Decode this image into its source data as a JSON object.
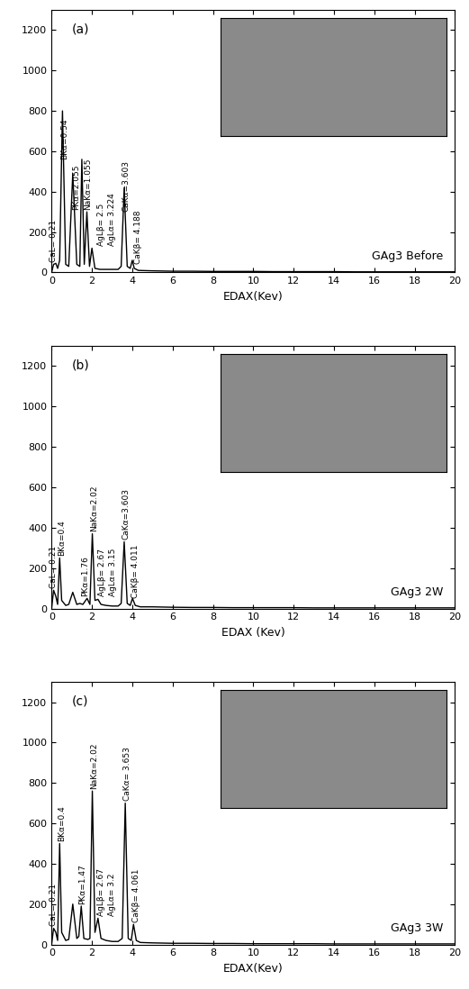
{
  "chart_data": [
    {
      "type": "line",
      "title": "GAg3 Before",
      "subtitle": "(a)",
      "x_label": "EDAX(Kev)",
      "color": "#000000",
      "grid": false,
      "xlim": [
        0,
        20
      ],
      "xticks": [
        0,
        2,
        4,
        6,
        8,
        10,
        12,
        14,
        16,
        18,
        20
      ],
      "ylim": [
        0,
        1300
      ],
      "yticks": [
        0,
        200,
        400,
        600,
        800,
        1000,
        1200
      ],
      "x": [
        0,
        0.1,
        0.21,
        0.3,
        0.4,
        0.54,
        0.7,
        0.85,
        1.05,
        1.25,
        1.4,
        1.5,
        1.62,
        1.75,
        1.88,
        2.0,
        2.15,
        2.4,
        2.7,
        3.0,
        3.3,
        3.45,
        3.6,
        3.75,
        3.9,
        4.0,
        4.1,
        4.3,
        5,
        6,
        7,
        8,
        9,
        10,
        11,
        12,
        13,
        14,
        15,
        16,
        17,
        18,
        19,
        20
      ],
      "values": [
        0,
        40,
        45,
        20,
        60,
        800,
        40,
        30,
        490,
        40,
        30,
        560,
        40,
        300,
        30,
        120,
        20,
        15,
        15,
        15,
        15,
        30,
        420,
        30,
        20,
        60,
        20,
        10,
        8,
        6,
        6,
        5,
        5,
        5,
        4,
        4,
        4,
        4,
        3,
        3,
        3,
        3,
        3,
        3
      ],
      "annotations": [
        {
          "text": "CaL= 0.21",
          "x": 0.1,
          "y": 50
        },
        {
          "text": "BKα=0.54",
          "x": 0.62,
          "y": 560
        },
        {
          "text": "PKα=2.055",
          "x": 1.2,
          "y": 310
        },
        {
          "text": "NaKα=1.055",
          "x": 1.8,
          "y": 310
        },
        {
          "text": "AgLβ= 2.5",
          "x": 2.45,
          "y": 130
        },
        {
          "text": "AgLα= 3.224",
          "x": 3.0,
          "y": 130
        },
        {
          "text": "CaKα=3.603",
          "x": 3.7,
          "y": 300
        },
        {
          "text": "CaKβ= 4.188",
          "x": 4.3,
          "y": 40
        }
      ]
    },
    {
      "type": "line",
      "title": "GAg3 2W",
      "subtitle": "(b)",
      "x_label": "EDAX (Kev)",
      "color": "#000000",
      "grid": false,
      "xlim": [
        0,
        20
      ],
      "xticks": [
        0,
        2,
        4,
        6,
        8,
        10,
        12,
        14,
        16,
        18,
        20
      ],
      "ylim": [
        0,
        1300
      ],
      "yticks": [
        0,
        200,
        400,
        600,
        800,
        1000,
        1200
      ],
      "x": [
        0,
        0.1,
        0.21,
        0.3,
        0.4,
        0.5,
        0.7,
        0.85,
        1.05,
        1.25,
        1.4,
        1.55,
        1.76,
        1.9,
        2.02,
        2.15,
        2.3,
        2.45,
        2.7,
        3.0,
        3.3,
        3.45,
        3.6,
        3.75,
        3.9,
        4.01,
        4.15,
        4.4,
        5,
        6,
        7,
        8,
        9,
        10,
        11,
        12,
        13,
        14,
        15,
        16,
        17,
        18,
        19,
        20
      ],
      "values": [
        0,
        90,
        60,
        20,
        250,
        40,
        15,
        20,
        80,
        20,
        25,
        20,
        50,
        20,
        370,
        40,
        45,
        20,
        15,
        12,
        12,
        25,
        330,
        25,
        15,
        50,
        15,
        8,
        8,
        6,
        5,
        5,
        4,
        4,
        4,
        4,
        3,
        3,
        3,
        3,
        3,
        3,
        3,
        3
      ],
      "annotations": [
        {
          "text": "CaL= 0.21",
          "x": 0.1,
          "y": 100
        },
        {
          "text": "BKα=0.4",
          "x": 0.5,
          "y": 260
        },
        {
          "text": "PKα=1.76",
          "x": 1.65,
          "y": 60
        },
        {
          "text": "NaKα=2.02",
          "x": 2.1,
          "y": 380
        },
        {
          "text": "AgLβ= 2.67",
          "x": 2.5,
          "y": 60
        },
        {
          "text": "AgLα= 3.15",
          "x": 3.05,
          "y": 60
        },
        {
          "text": "CaKα=3.603",
          "x": 3.7,
          "y": 340
        },
        {
          "text": "CaKβ= 4.011",
          "x": 4.15,
          "y": 50
        }
      ]
    },
    {
      "type": "line",
      "title": "GAg3 3W",
      "subtitle": "(c)",
      "x_label": "EDAX(Kev)",
      "color": "#000000",
      "grid": false,
      "xlim": [
        0,
        20
      ],
      "xticks": [
        0,
        2,
        4,
        6,
        8,
        10,
        12,
        14,
        16,
        18,
        20
      ],
      "ylim": [
        0,
        1300
      ],
      "yticks": [
        0,
        200,
        400,
        600,
        800,
        1000,
        1200
      ],
      "x": [
        0,
        0.1,
        0.21,
        0.3,
        0.4,
        0.5,
        0.7,
        0.85,
        1.05,
        1.25,
        1.35,
        1.47,
        1.6,
        1.8,
        1.9,
        2.02,
        2.15,
        2.3,
        2.45,
        2.7,
        3.0,
        3.3,
        3.5,
        3.653,
        3.8,
        3.95,
        4.061,
        4.2,
        4.4,
        5,
        6,
        7,
        8,
        9,
        10,
        11,
        12,
        13,
        14,
        15,
        16,
        17,
        18,
        19,
        20
      ],
      "values": [
        0,
        80,
        60,
        20,
        500,
        60,
        20,
        25,
        200,
        30,
        40,
        190,
        30,
        25,
        30,
        760,
        60,
        130,
        30,
        20,
        15,
        15,
        30,
        700,
        30,
        20,
        100,
        20,
        10,
        8,
        6,
        6,
        5,
        5,
        4,
        4,
        4,
        4,
        3,
        3,
        3,
        3,
        3,
        3,
        3
      ],
      "annotations": [
        {
          "text": "CaL= 0.21",
          "x": 0.1,
          "y": 90
        },
        {
          "text": "BKα=0.4",
          "x": 0.5,
          "y": 510
        },
        {
          "text": "PKα=1.47",
          "x": 1.55,
          "y": 200
        },
        {
          "text": "NaKα=2.02",
          "x": 2.1,
          "y": 770
        },
        {
          "text": "AgLβ= 2.67",
          "x": 2.45,
          "y": 140
        },
        {
          "text": "AgLα= 3.2",
          "x": 3.0,
          "y": 140
        },
        {
          "text": "CaKα= 3.653",
          "x": 3.75,
          "y": 710
        },
        {
          "text": "CaKβ= 4.061",
          "x": 4.2,
          "y": 110
        }
      ]
    }
  ]
}
